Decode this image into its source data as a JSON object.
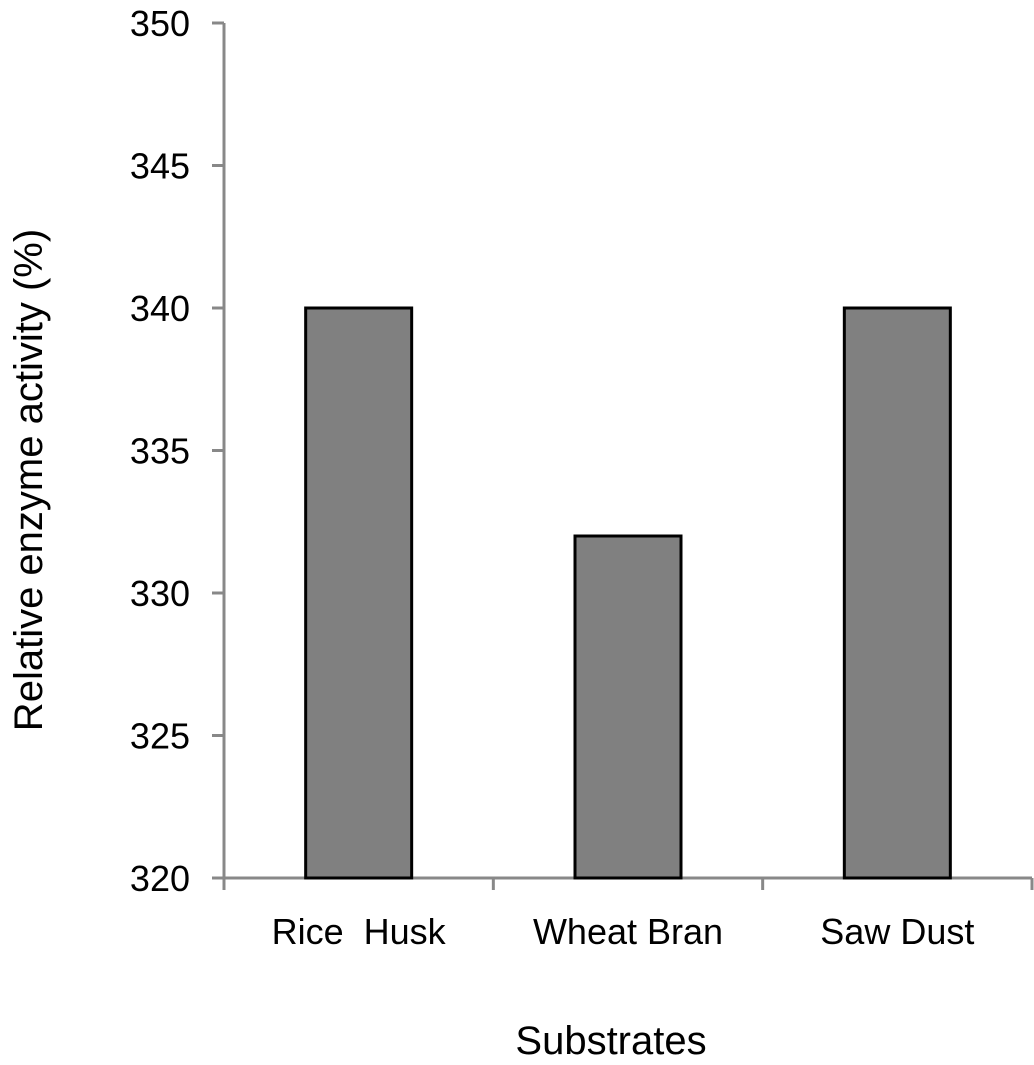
{
  "chart_data": {
    "type": "bar",
    "title": "",
    "xlabel": "Substrates",
    "ylabel": "Relative enzyme activity (%)",
    "categories": [
      "Rice  Husk",
      "Wheat Bran",
      "Saw Dust"
    ],
    "values": [
      340,
      332,
      340
    ],
    "ylim": [
      320,
      350
    ],
    "yticks": [
      320,
      325,
      330,
      335,
      340,
      345,
      350
    ],
    "grid": false,
    "legend": "none",
    "bar_color": "#808080",
    "bar_edge_color": "#000000",
    "axis_color": "#888888"
  }
}
